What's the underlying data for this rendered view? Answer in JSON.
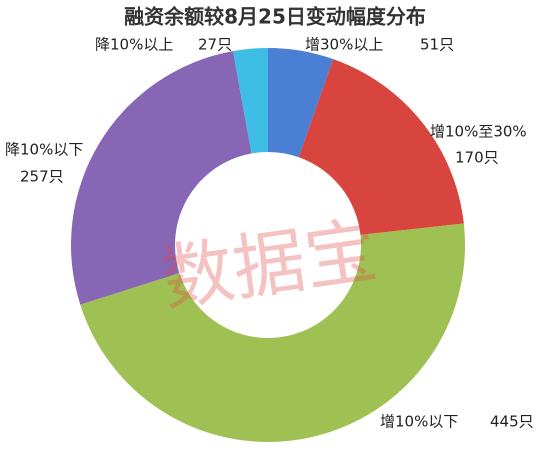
{
  "chart_data": {
    "type": "donut",
    "title": "融资余额较8月25日变动幅度分布",
    "categories": [
      "增30%以上",
      "增10%至30%",
      "增10%以下",
      "降10%以下",
      "降10%以上"
    ],
    "values": [
      51,
      170,
      445,
      257,
      27
    ],
    "value_labels": [
      "51只",
      "170只",
      "445只",
      "257只",
      "27只"
    ],
    "colors": [
      "#4a7fd3",
      "#d8453e",
      "#9fc052",
      "#8866b6",
      "#3ebde6"
    ]
  },
  "watermark": "数据宝"
}
